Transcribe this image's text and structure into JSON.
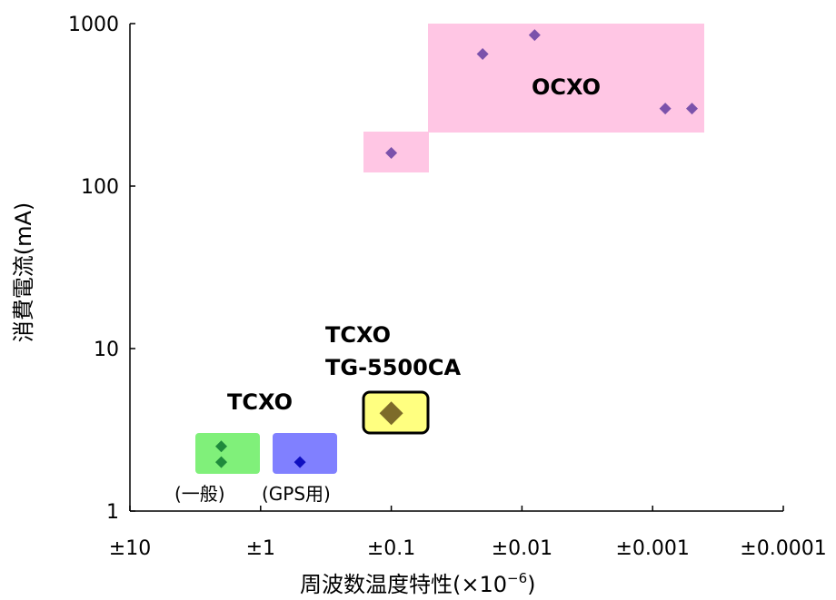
{
  "chart_data": {
    "type": "scatter",
    "xlabel": "周波数温度特性(×10",
    "xlabel_sup": "−6",
    "xlabel_close": ")",
    "ylabel": "消費電流(mA)",
    "x_scale": "log-reversed",
    "y_scale": "log",
    "xlim": [
      10,
      0.0001
    ],
    "ylim": [
      1,
      1000
    ],
    "x_tick_labels": [
      "±10",
      "±1",
      "±0.1",
      "±0.01",
      "±0.001",
      "±0.0001"
    ],
    "y_tick_labels": [
      "1",
      "10",
      "100",
      "1000"
    ],
    "grid": false,
    "legend": "none",
    "groups": [
      {
        "name": "OCXO",
        "label": "OCXO",
        "color": "#7b52ab",
        "region_color": "#ffc6e4",
        "points": [
          {
            "x": 0.1,
            "y": 160
          },
          {
            "x": 0.02,
            "y": 650
          },
          {
            "x": 0.008,
            "y": 850
          },
          {
            "x": 0.0008,
            "y": 300
          },
          {
            "x": 0.0005,
            "y": 300
          }
        ]
      },
      {
        "name": "TCXO (一般)",
        "label": "TCXO",
        "sublabel": "(一般)",
        "color": "#1f8a3c",
        "region_color": "#80f07a",
        "points": [
          {
            "x": 2,
            "y": 2.5
          },
          {
            "x": 2,
            "y": 2.0
          }
        ]
      },
      {
        "name": "TCXO (GPS用)",
        "sublabel": "(GPS用)",
        "color": "#1010c0",
        "region_color": "#8080ff",
        "points": [
          {
            "x": 0.5,
            "y": 2.0
          }
        ]
      },
      {
        "name": "TCXO TG-5500CA",
        "label_line1": "TCXO",
        "label_line2": "TG-5500CA",
        "color": "#7d6b2a",
        "region_color": "#ffff80",
        "points": [
          {
            "x": 0.1,
            "y": 4.0
          }
        ]
      }
    ]
  }
}
